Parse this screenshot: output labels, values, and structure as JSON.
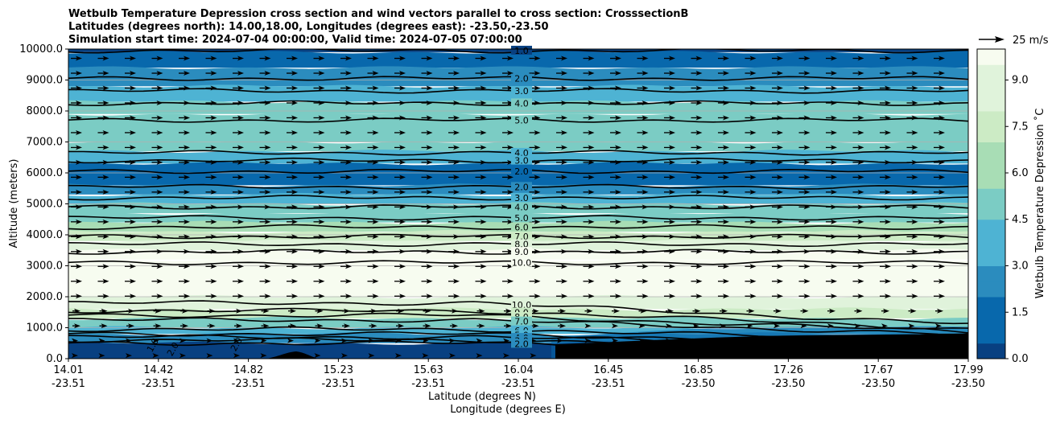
{
  "chart_data": {
    "type": "heatmap",
    "title_lines": [
      "Wetbulb Temperature Depression cross section and wind vectors parallel to cross section: CrosssectionB",
      "Latitudes (degrees north): 14.00,18.00, Longitudes (degrees east): -23.50,-23.50",
      "Simulation start time: 2024-07-04 00:00:00, Valid time: 2024-07-05 07:00:00"
    ],
    "xlabel_lat": "Latitude (degrees N)",
    "xlabel_lon": "Longitude (degrees E)",
    "ylabel": "Altitude (meters)",
    "x_ticks": [
      {
        "lat": "14.01",
        "lon": "-23.51"
      },
      {
        "lat": "14.42",
        "lon": "-23.51"
      },
      {
        "lat": "14.82",
        "lon": "-23.51"
      },
      {
        "lat": "15.23",
        "lon": "-23.51"
      },
      {
        "lat": "15.63",
        "lon": "-23.51"
      },
      {
        "lat": "16.04",
        "lon": "-23.51"
      },
      {
        "lat": "16.45",
        "lon": "-23.51"
      },
      {
        "lat": "16.85",
        "lon": "-23.50"
      },
      {
        "lat": "17.26",
        "lon": "-23.50"
      },
      {
        "lat": "17.67",
        "lon": "-23.50"
      },
      {
        "lat": "17.99",
        "lon": "-23.50"
      }
    ],
    "y_ticks": [
      "0.0",
      "1000.0",
      "2000.0",
      "3000.0",
      "4000.0",
      "5000.0",
      "6000.0",
      "7000.0",
      "8000.0",
      "9000.0",
      "10000.0"
    ],
    "ylim": [
      0,
      10000
    ],
    "colorbar": {
      "label": "Wetbulb Temperature Depression ˚C",
      "ticks": [
        "0.0",
        "1.5",
        "3.0",
        "4.5",
        "6.0",
        "7.5",
        "9.0"
      ],
      "range": [
        0,
        10
      ],
      "colors": [
        "#084081",
        "#0868ac",
        "#2b8cbe",
        "#4eb3d3",
        "#7bccc4",
        "#a8ddb5",
        "#ccebc5",
        "#e0f3db",
        "#f7fcf0"
      ]
    },
    "wind_key_label": "25 m/s",
    "grid": true,
    "contour_levels": [
      {
        "label": "1.0",
        "altitude": 9950
      },
      {
        "label": "2.0",
        "altitude": 9050
      },
      {
        "label": "3.0",
        "altitude": 8650
      },
      {
        "label": "4.0",
        "altitude": 8250
      },
      {
        "label": "5.0",
        "altitude": 7700
      },
      {
        "label": "4.0",
        "altitude": 6650
      },
      {
        "label": "3.0",
        "altitude": 6400
      },
      {
        "label": "2.0",
        "altitude": 6050
      },
      {
        "label": "2.0",
        "altitude": 5550
      },
      {
        "label": "3.0",
        "altitude": 5200
      },
      {
        "label": "4.0",
        "altitude": 4900
      },
      {
        "label": "5.0",
        "altitude": 4550
      },
      {
        "label": "6.0",
        "altitude": 4250
      },
      {
        "label": "7.0",
        "altitude": 3950
      },
      {
        "label": "8.0",
        "altitude": 3700
      },
      {
        "label": "9.0",
        "altitude": 3450
      },
      {
        "label": "10.0",
        "altitude": 3100
      },
      {
        "label": "10.0",
        "altitude": 1800
      },
      {
        "label": "9.0",
        "altitude": 1550
      },
      {
        "label": "8.0",
        "altitude": 1400
      },
      {
        "label": "7.0",
        "altitude": 1250
      },
      {
        "label": "6.0",
        "altitude": 950
      },
      {
        "label": "5.0",
        "altitude": 800
      },
      {
        "label": "4.0",
        "altitude": 700
      },
      {
        "label": "3.0",
        "altitude": 600
      },
      {
        "label": "2.0",
        "altitude": 500
      }
    ],
    "lower_contour_labels": [
      "1.0",
      "2.0",
      "2.0",
      "0.0"
    ],
    "bands": [
      {
        "y0": 9900,
        "y1": 10000,
        "value": 0.3
      },
      {
        "y0": 9400,
        "y1": 9900,
        "value": 1.0
      },
      {
        "y0": 8800,
        "y1": 9400,
        "value": 2.2
      },
      {
        "y0": 8300,
        "y1": 8800,
        "value": 3.3
      },
      {
        "y0": 7900,
        "y1": 8300,
        "value": 4.5
      },
      {
        "y0": 7000,
        "y1": 7900,
        "value": 5.6
      },
      {
        "y0": 6700,
        "y1": 7000,
        "value": 4.4
      },
      {
        "y0": 6300,
        "y1": 6700,
        "value": 3.2
      },
      {
        "y0": 5600,
        "y1": 6300,
        "value": 1.6
      },
      {
        "y0": 5300,
        "y1": 5600,
        "value": 2.4
      },
      {
        "y0": 5000,
        "y1": 5300,
        "value": 3.4
      },
      {
        "y0": 4700,
        "y1": 5000,
        "value": 4.4
      },
      {
        "y0": 4400,
        "y1": 4700,
        "value": 5.4
      },
      {
        "y0": 4100,
        "y1": 4400,
        "value": 6.5
      },
      {
        "y0": 3800,
        "y1": 4100,
        "value": 7.6
      },
      {
        "y0": 3500,
        "y1": 3800,
        "value": 8.6
      },
      {
        "y0": 3200,
        "y1": 3500,
        "value": 9.5
      },
      {
        "y0": 2000,
        "y1": 3200,
        "value": 10.0
      },
      {
        "y0": 1600,
        "y1": 2000,
        "value": 8.8
      },
      {
        "y0": 1300,
        "y1": 1600,
        "value": 7.0
      },
      {
        "y0": 1000,
        "y1": 1300,
        "value": 5.5
      },
      {
        "y0": 800,
        "y1": 1000,
        "value": 4.0
      },
      {
        "y0": 500,
        "y1": 800,
        "value": 2.5
      },
      {
        "y0": 0,
        "y1": 500,
        "value": 0.6
      }
    ]
  }
}
